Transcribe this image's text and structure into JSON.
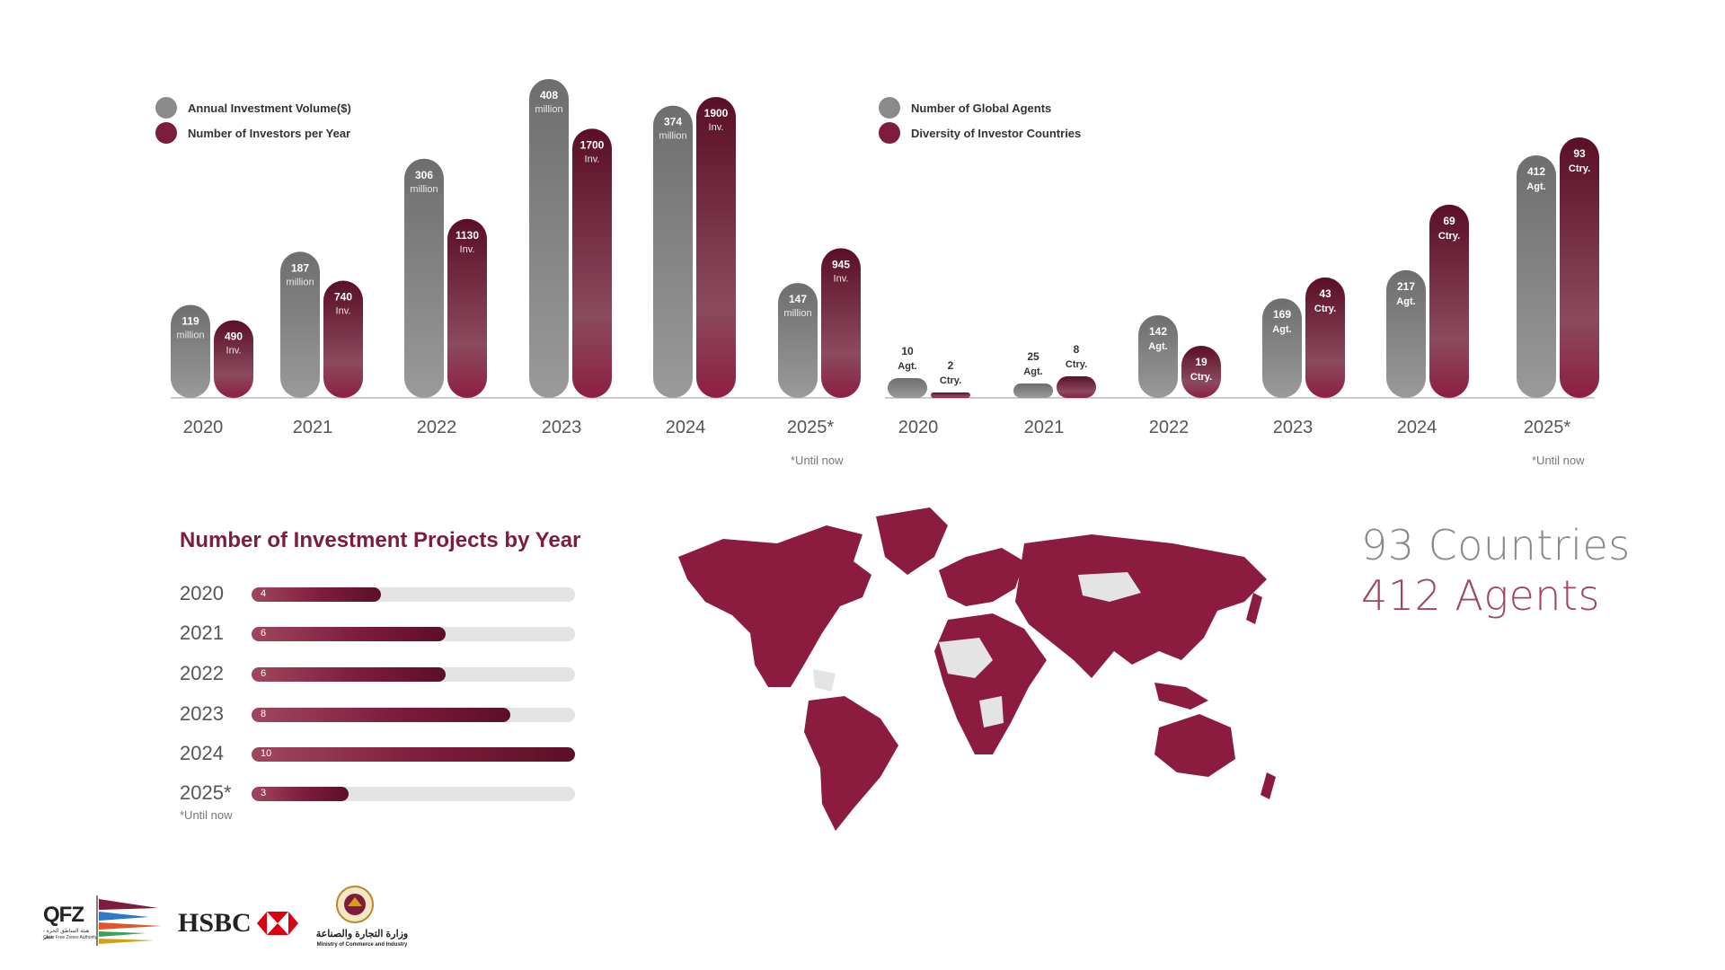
{
  "colors": {
    "gray_bar": "#777777",
    "maroon_bar": "#7d1c3c",
    "accent": "#7d1c3c",
    "stat_gray": "#888888",
    "stat_maroon": "#a0475f"
  },
  "chart_data": [
    {
      "type": "bar",
      "title": "",
      "categories": [
        "2020",
        "2021",
        "2022",
        "2023",
        "2024",
        "2025*"
      ],
      "series": [
        {
          "name": "Annual Investment Volume($)",
          "values": [
            119,
            187,
            306,
            408,
            374,
            147
          ],
          "unit": "million"
        },
        {
          "name": "Number of Investors per Year",
          "values": [
            490,
            740,
            1130,
            1700,
            1900,
            945
          ],
          "unit": "Inv."
        }
      ],
      "legend": "top-left",
      "footnote": "*Until now"
    },
    {
      "type": "bar",
      "title": "",
      "categories": [
        "2020",
        "2021",
        "2022",
        "2023",
        "2024",
        "2025*"
      ],
      "series": [
        {
          "name": "Number of Global Agents",
          "values": [
            10,
            25,
            142,
            169,
            217,
            412
          ],
          "unit": "Agt."
        },
        {
          "name": "Diversity of Investor Countries",
          "values": [
            2,
            8,
            19,
            43,
            69,
            93
          ],
          "unit": "Ctry."
        }
      ],
      "legend": "top-left",
      "footnote": "*Until now"
    },
    {
      "type": "bar",
      "orientation": "horizontal",
      "title": "Number of Investment Projects by Year",
      "categories": [
        "2020",
        "2021",
        "2022",
        "2023",
        "2024",
        "2025*"
      ],
      "values": [
        4,
        6,
        6,
        8,
        10,
        3
      ],
      "xlim": [
        0,
        10
      ],
      "footnote": "*Until now"
    }
  ],
  "stats": {
    "countries": "93 Countries",
    "agents": "412 Agents"
  },
  "logos": {
    "qfz": "QFZ",
    "qfz_sub_ar": "هيئة المناطق الحرة - قطر",
    "qfz_sub_en": "Qatar Free Zones Authority",
    "hsbc": "HSBC",
    "ministry_ar": "وزارة التجارة والصناعة",
    "ministry_en": "Ministry of Commerce and Industry"
  }
}
